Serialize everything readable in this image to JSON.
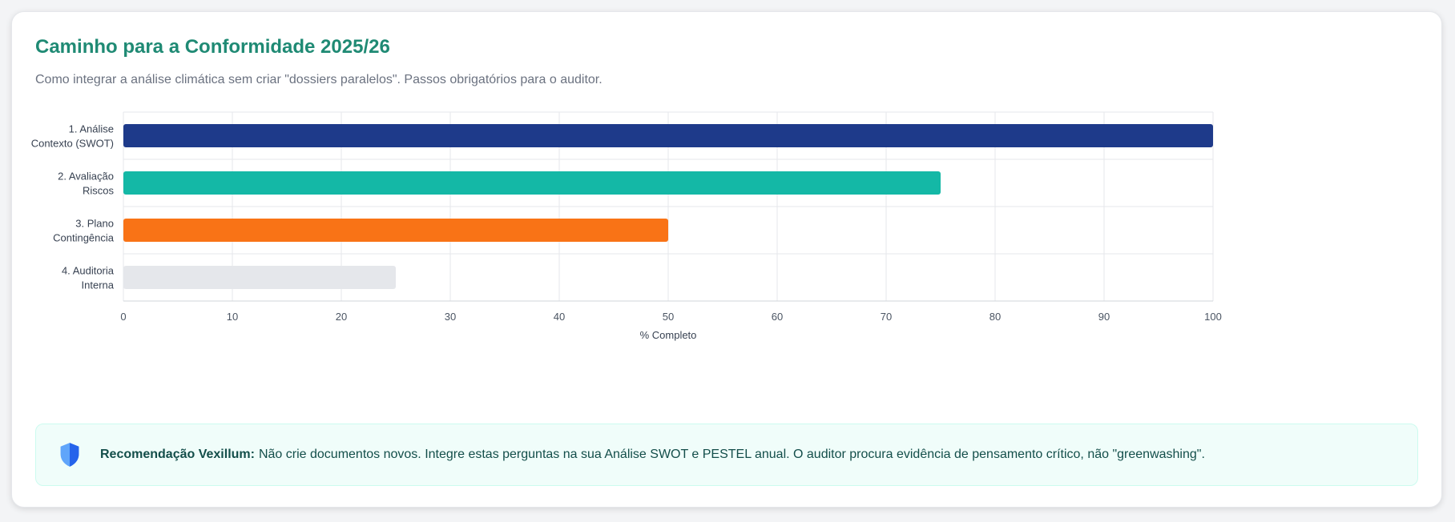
{
  "card": {
    "title": "Caminho para a Conformidade 2025/26",
    "subtitle": "Como integrar a análise climática sem criar \"dossiers paralelos\". Passos obrigatórios para o auditor."
  },
  "chart_data": {
    "type": "bar",
    "orientation": "horizontal",
    "categories": [
      [
        "1. Análise",
        "Contexto (SWOT)"
      ],
      [
        "2. Avaliação",
        "Riscos"
      ],
      [
        "3. Plano",
        "Contingência"
      ],
      [
        "4. Auditoria",
        "Interna"
      ]
    ],
    "values": [
      100,
      75,
      50,
      25
    ],
    "colors": [
      "#1e3a8a",
      "#14b8a6",
      "#f97316",
      "#e5e7eb"
    ],
    "xlabel": "% Completo",
    "xlim": [
      0,
      100
    ],
    "xticks": [
      0,
      10,
      20,
      30,
      40,
      50,
      60,
      70,
      80,
      90,
      100
    ],
    "grid": true,
    "legend": "none"
  },
  "callout": {
    "icon": "shield-icon",
    "label": "Recomendação Vexillum:",
    "text": "Não crie documentos novos. Integre estas perguntas na sua Análise SWOT e PESTEL anual. O auditor procura evidência de pensamento crítico, não \"greenwashing\"."
  }
}
